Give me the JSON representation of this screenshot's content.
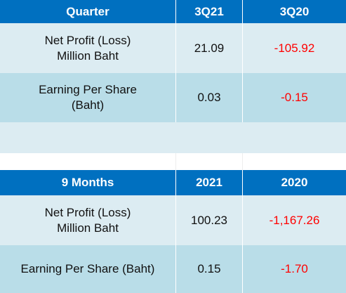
{
  "quarter_table": {
    "header": [
      "Quarter",
      "3Q21",
      "3Q20"
    ],
    "rows": [
      {
        "label": "Net Profit (Loss)\nMillion Baht",
        "current": "21.09",
        "previous": "-105.92"
      },
      {
        "label": "Earning Per Share\n(Baht)",
        "current": "0.03",
        "previous": "-0.15"
      }
    ]
  },
  "nine_months_table": {
    "header": [
      "9 Months",
      "2021",
      "2020"
    ],
    "rows": [
      {
        "label": "Net Profit (Loss)\nMillion Baht",
        "current": "100.23",
        "previous": "-1,167.26"
      },
      {
        "label": "Earning Per Share (Baht)",
        "current": "0.15",
        "previous": "-1.70"
      }
    ]
  },
  "colors": {
    "header_bg": "#0070c0",
    "row_light": "#dcecf2",
    "row_mid": "#b9dde8",
    "negative": "#ff0000"
  }
}
